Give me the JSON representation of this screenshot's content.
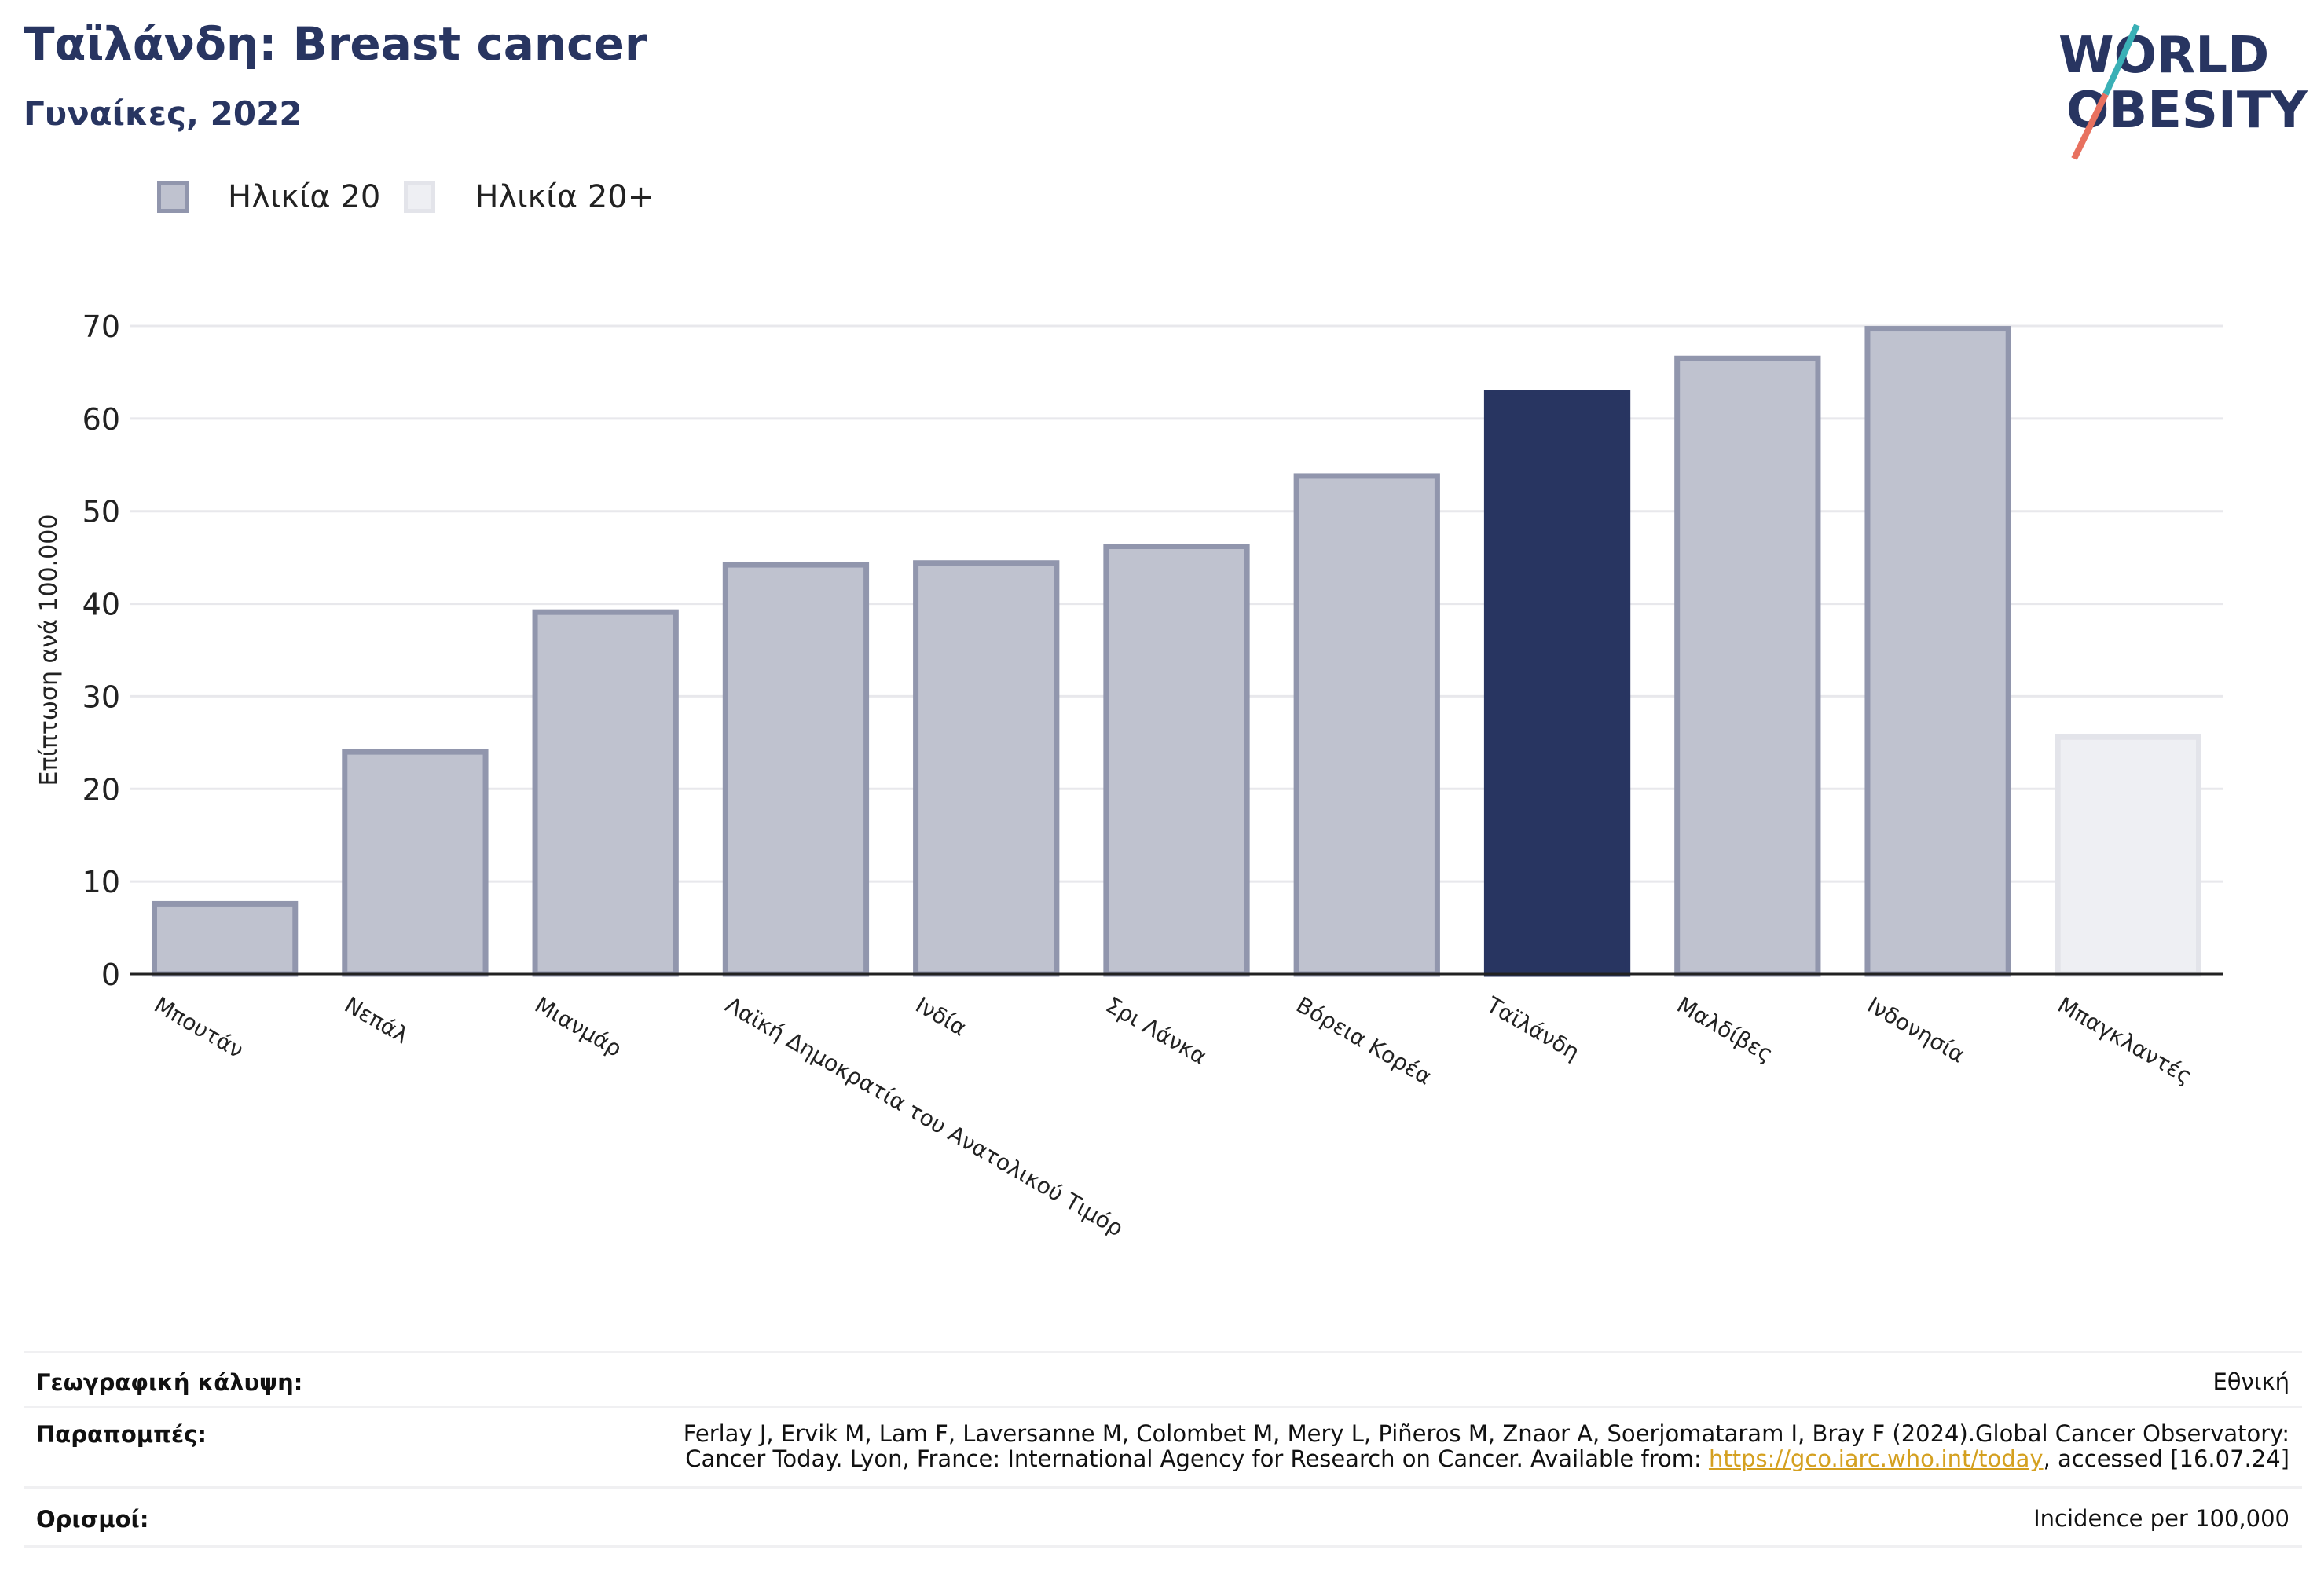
{
  "header": {
    "title": "Ταϊλάνδη: Breast cancer",
    "subtitle": "Γυναίκες, 2022"
  },
  "logo": {
    "line1": "WORLD",
    "line2": "OBESITY"
  },
  "legend": [
    {
      "label": "Ηλικία 20",
      "color": "#bfc2cf"
    },
    {
      "label": "Ηλικία 20+",
      "color": "#eeeff3"
    }
  ],
  "chart_data": {
    "type": "bar",
    "ylabel": "Επίπτωση ανά 100.000",
    "ylim": [
      0,
      70
    ],
    "yticks": [
      0,
      10,
      20,
      30,
      40,
      50,
      60,
      70
    ],
    "categories": [
      "Μπουτάν",
      "Νεπάλ",
      "Μιανμάρ",
      "Λαϊκή Δημοκρατία του Ανατολικού Τιμόρ",
      "Ινδία",
      "Σρι Λάνκα",
      "Βόρεια Κορέα",
      "Ταϊλάνδη",
      "Μαλδίβες",
      "Ινδονησία",
      "Μπαγκλαντές"
    ],
    "values": [
      7.6,
      24.0,
      39.1,
      44.2,
      44.4,
      46.2,
      53.8,
      62.8,
      66.5,
      69.7,
      25.6
    ],
    "series_group": [
      "Ηλικία 20",
      "Ηλικία 20",
      "Ηλικία 20",
      "Ηλικία 20",
      "Ηλικία 20",
      "Ηλικία 20",
      "Ηλικία 20",
      "Ηλικία 20",
      "Ηλικία 20",
      "Ηλικία 20",
      "Ηλικία 20+"
    ],
    "highlight": "Ταϊλάνδη",
    "colors": {
      "normal_fill": "#bfc2cf",
      "normal_stroke": "#9196ad",
      "highlight": "#283561",
      "plus_fill": "#eeeff3",
      "plus_stroke": "#e3e4ea"
    },
    "grid": true
  },
  "info": {
    "coverage_label": "Γεωγραφική κάλυψη:",
    "coverage_value": "Εθνική",
    "refs_label": "Παραπομπές:",
    "refs_line1": "Ferlay J, Ervik M, Lam F, Laversanne M, Colombet M, Mery L, Piñeros M, Znaor A, Soerjomataram I, Bray F (2024).Global Cancer Observatory:",
    "refs_line2_pre": "Cancer Today. Lyon, France: International Agency for Research on Cancer. Available from: ",
    "refs_link": "https://gco.iarc.who.int/today",
    "refs_line2_post": ", accessed [16.07.24]",
    "definitions_label": "Ορισμοί:",
    "definitions_value": "Incidence per 100,000"
  }
}
